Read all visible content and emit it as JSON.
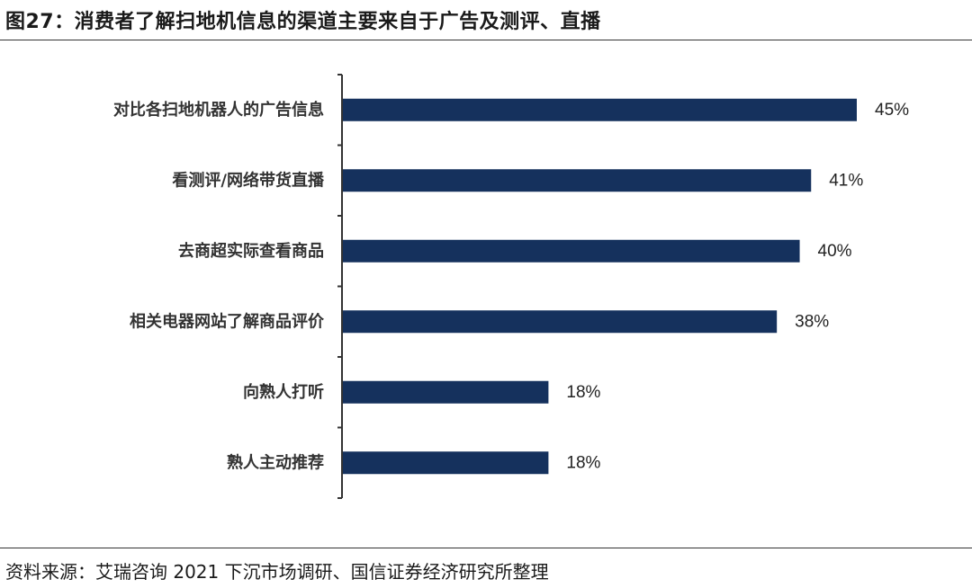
{
  "title": "图27：消费者了解扫地机信息的渠道主要来自于广告及测评、直播",
  "source": "资料来源：艾瑞咨询 2021 下沉市场调研、国信证券经济研究所整理",
  "colors": {
    "bar": "#15315d",
    "axis": "#333333"
  },
  "chart_data": {
    "type": "bar",
    "orientation": "horizontal",
    "categories": [
      "对比各扫地机器人的广告信息",
      "看测评/网络带货直播",
      "去商超实际查看商品",
      "相关电器网站了解商品评价",
      "向熟人打听",
      "熟人主动推荐"
    ],
    "values": [
      45,
      41,
      40,
      38,
      18,
      18
    ],
    "value_labels": [
      "45%",
      "41%",
      "40%",
      "38%",
      "18%",
      "18%"
    ],
    "unit": "%",
    "xlim": [
      0,
      50
    ],
    "grid": false,
    "legend": "none"
  }
}
